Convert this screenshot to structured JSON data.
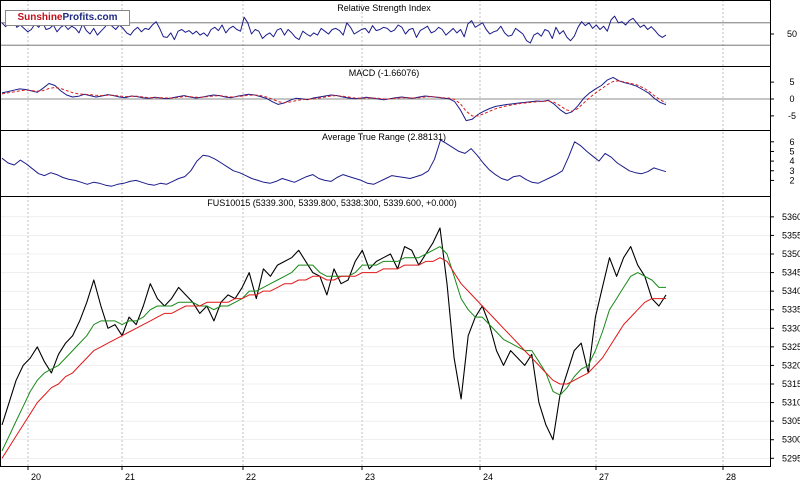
{
  "logo": {
    "part1": "Sunshine",
    "part2": "Profits.com"
  },
  "colors": {
    "rsi": "#1c1c8c",
    "macd": "#1c1c8c",
    "signal": "#d42020",
    "atr": "#1c1c8c",
    "price": "#000000",
    "sma_short": "#1a8a1a",
    "sma_long": "#e01818",
    "grid": "#b0b0b0"
  },
  "x_axis": {
    "ticks": [
      "20",
      "21",
      "22",
      "23",
      "24",
      "27",
      "28"
    ]
  },
  "chart_data": [
    {
      "type": "line",
      "panel": "rsi",
      "title": "Relative Strength Index",
      "yticks": [
        "50"
      ],
      "ylim": [
        0,
        100
      ],
      "levels": [
        70,
        30
      ],
      "series": [
        {
          "values": [
            70,
            63,
            72,
            80,
            62,
            66,
            60,
            54,
            58,
            68,
            62,
            72,
            58,
            60,
            66,
            54,
            62,
            66,
            58,
            64,
            60,
            52,
            68,
            56,
            50,
            60,
            48,
            55,
            62,
            70,
            64,
            58,
            66,
            60,
            52,
            48,
            57,
            62,
            54,
            60,
            58,
            66,
            72,
            60,
            45,
            44,
            52,
            40,
            55,
            58,
            53,
            56,
            50,
            55,
            48,
            52,
            46,
            58,
            62,
            56,
            66,
            52,
            60,
            64,
            58,
            55,
            80,
            70,
            50,
            58,
            55,
            42,
            48,
            52,
            45,
            57,
            60,
            48,
            58,
            52,
            44,
            40,
            55,
            50,
            46,
            52,
            48,
            60,
            55,
            50,
            58,
            60,
            56,
            48,
            70,
            62,
            50,
            54,
            58,
            60,
            52,
            65,
            56,
            58,
            62,
            60,
            54,
            57,
            66,
            62,
            50,
            58,
            60,
            44,
            56,
            60,
            64,
            52,
            55,
            62,
            58,
            48,
            54,
            60,
            52,
            58,
            45,
            68,
            74,
            62,
            66,
            70,
            58,
            50,
            54,
            56,
            64,
            52,
            46,
            48,
            60,
            55,
            50,
            38,
            34,
            48,
            52,
            46,
            58,
            55,
            42,
            62,
            50,
            56,
            44,
            38,
            46,
            62,
            72,
            65,
            70,
            60,
            66,
            58,
            64,
            55,
            75,
            82,
            70,
            72,
            66,
            74,
            78,
            70,
            62,
            66,
            58,
            63,
            56,
            48,
            44,
            48
          ]
        }
      ]
    },
    {
      "type": "line",
      "panel": "macd",
      "title": "MACD (-1.66076)",
      "yticks": [
        "5",
        "0",
        "-5"
      ],
      "ylim": [
        -8,
        8
      ],
      "series": [
        {
          "values": [
            1.8,
            2.2,
            2.6,
            3.0,
            2.8,
            2.4,
            2.0,
            3.2,
            4.6,
            4.0,
            2.4,
            1.2,
            0.6,
            0.8,
            1.4,
            1.0,
            0.6,
            0.9,
            1.3,
            1.0,
            0.6,
            0.4,
            0.9,
            0.7,
            0.4,
            0.2,
            0.5,
            0.3,
            0.1,
            0.4,
            0.7,
            1.0,
            0.6,
            0.3,
            0.5,
            0.9,
            1.2,
            1.0,
            0.6,
            0.4,
            0.8,
            1.1,
            1.4,
            1.2,
            0.7,
            0.2,
            -0.8,
            -1.6,
            -1.2,
            -0.4,
            0.2,
            0.1,
            -0.2,
            0.3,
            0.6,
            0.9,
            1.2,
            1.0,
            0.6,
            0.3,
            0.1,
            0.2,
            0.5,
            0.3,
            0.0,
            -0.2,
            0.1,
            0.4,
            0.6,
            0.4,
            0.2,
            0.6,
            0.9,
            0.7,
            0.5,
            0.3,
            0.1,
            -0.7,
            -3.2,
            -6.4,
            -6.0,
            -4.6,
            -3.6,
            -2.8,
            -2.2,
            -1.9,
            -1.6,
            -1.4,
            -1.2,
            -1.0,
            -0.8,
            -0.6,
            -0.7,
            -0.4,
            -1.6,
            -3.2,
            -4.4,
            -3.8,
            -2.0,
            0.2,
            1.8,
            3.0,
            4.0,
            5.6,
            6.4,
            5.4,
            4.8,
            4.4,
            3.8,
            2.8,
            1.8,
            0.2,
            -1.0,
            -1.7
          ]
        },
        {
          "values": [
            1.5,
            1.8,
            2.1,
            2.4,
            2.6,
            2.5,
            2.3,
            2.5,
            3.1,
            3.4,
            3.1,
            2.5,
            1.9,
            1.5,
            1.4,
            1.3,
            1.1,
            1.0,
            1.1,
            1.1,
            0.9,
            0.7,
            0.8,
            0.8,
            0.6,
            0.4,
            0.4,
            0.4,
            0.3,
            0.3,
            0.5,
            0.7,
            0.7,
            0.5,
            0.5,
            0.7,
            0.9,
            1.0,
            0.8,
            0.6,
            0.7,
            0.9,
            1.1,
            1.2,
            1.0,
            0.6,
            0.0,
            -0.8,
            -1.1,
            -0.9,
            -0.5,
            -0.2,
            -0.1,
            0.0,
            0.3,
            0.6,
            0.9,
            1.0,
            0.8,
            0.6,
            0.3,
            0.2,
            0.3,
            0.3,
            0.2,
            0.0,
            0.0,
            0.2,
            0.4,
            0.4,
            0.3,
            0.4,
            0.6,
            0.7,
            0.6,
            0.4,
            0.3,
            -0.1,
            -1.4,
            -3.6,
            -5.0,
            -5.0,
            -4.4,
            -3.6,
            -2.9,
            -2.4,
            -2.0,
            -1.7,
            -1.4,
            -1.2,
            -1.0,
            -0.8,
            -0.7,
            -0.6,
            -1.0,
            -2.0,
            -3.2,
            -3.6,
            -2.8,
            -1.2,
            0.4,
            1.8,
            3.0,
            4.2,
            5.2,
            5.4,
            5.0,
            4.6,
            4.2,
            3.4,
            2.4,
            1.0,
            -0.2,
            -1.2
          ]
        }
      ]
    },
    {
      "type": "line",
      "panel": "atr",
      "title": "Average True Range (2.88131)",
      "yticks": [
        "6",
        "5",
        "4",
        "3",
        "2"
      ],
      "ylim": [
        0.8,
        6.6
      ],
      "series": [
        {
          "values": [
            4.3,
            3.8,
            3.6,
            4.1,
            3.7,
            3.2,
            2.7,
            2.5,
            2.8,
            2.6,
            2.3,
            2.1,
            2.0,
            1.8,
            1.6,
            1.8,
            1.7,
            1.5,
            1.4,
            1.6,
            1.7,
            1.9,
            2.0,
            1.8,
            1.6,
            1.5,
            1.7,
            1.6,
            1.9,
            2.2,
            2.4,
            3.0,
            4.0,
            4.6,
            4.5,
            4.2,
            3.8,
            3.4,
            3.0,
            2.8,
            2.5,
            2.2,
            2.0,
            1.8,
            1.7,
            1.9,
            2.2,
            2.0,
            1.8,
            2.1,
            2.4,
            2.6,
            2.2,
            2.0,
            1.9,
            2.3,
            2.6,
            2.4,
            2.2,
            2.0,
            1.7,
            1.6,
            1.9,
            2.2,
            2.5,
            2.4,
            2.3,
            2.2,
            2.4,
            2.6,
            3.0,
            4.2,
            6.2,
            5.8,
            5.4,
            5.0,
            4.8,
            5.3,
            4.6,
            3.8,
            3.1,
            2.6,
            2.2,
            2.0,
            2.4,
            2.5,
            2.1,
            1.8,
            1.7,
            2.0,
            2.3,
            2.6,
            3.0,
            4.4,
            6.0,
            5.6,
            5.0,
            4.5,
            4.0,
            4.8,
            4.4,
            3.8,
            3.4,
            3.0,
            2.8,
            2.7,
            2.9,
            3.3,
            3.1,
            2.9
          ]
        }
      ]
    },
    {
      "type": "line",
      "panel": "price",
      "title": "FUS10015 (5339.300, 5339.800, 5338.300, 5339.600, +0.000)",
      "yticks": [
        "5360",
        "5355",
        "5350",
        "5345",
        "5340",
        "5335",
        "5330",
        "5325",
        "5320",
        "5315",
        "5310",
        "5305",
        "5300",
        "5295"
      ],
      "ylim": [
        5294,
        5364
      ],
      "series": [
        {
          "values": [
            5304,
            5310,
            5316,
            5320,
            5322,
            5325,
            5321,
            5318,
            5323,
            5326,
            5328,
            5332,
            5337,
            5343,
            5336,
            5330,
            5331,
            5328,
            5333,
            5331,
            5336,
            5342,
            5338,
            5336,
            5338,
            5341,
            5339,
            5337,
            5334,
            5336,
            5332,
            5337,
            5339,
            5338,
            5341,
            5345,
            5338,
            5346,
            5344,
            5347,
            5348,
            5349,
            5351,
            5348,
            5345,
            5344,
            5339,
            5346,
            5342,
            5343,
            5348,
            5351,
            5346,
            5348,
            5349,
            5350,
            5346,
            5352,
            5351,
            5347,
            5350,
            5353,
            5357,
            5342,
            5322,
            5311,
            5328,
            5333,
            5336,
            5331,
            5324,
            5320,
            5324,
            5322,
            5320,
            5323,
            5310,
            5304,
            5300,
            5312,
            5318,
            5324,
            5326,
            5318,
            5333,
            5341,
            5349,
            5344,
            5349,
            5352,
            5347,
            5344,
            5338,
            5336,
            5339
          ]
        },
        {
          "values": [
            5297,
            5301,
            5305,
            5309,
            5313,
            5316,
            5318,
            5319,
            5320,
            5322,
            5324,
            5326,
            5328,
            5331,
            5332,
            5332,
            5332,
            5331,
            5332,
            5332,
            5333,
            5335,
            5336,
            5336,
            5336,
            5337,
            5337,
            5337,
            5336,
            5336,
            5335,
            5336,
            5336,
            5337,
            5338,
            5340,
            5340,
            5341,
            5342,
            5343,
            5344,
            5345,
            5347,
            5347,
            5347,
            5345,
            5344,
            5344,
            5344,
            5344,
            5345,
            5347,
            5347,
            5347,
            5348,
            5348,
            5348,
            5349,
            5349,
            5349,
            5350,
            5351,
            5352,
            5350,
            5344,
            5338,
            5335,
            5333,
            5333,
            5331,
            5329,
            5327,
            5326,
            5325,
            5324,
            5324,
            5321,
            5318,
            5313,
            5312,
            5314,
            5317,
            5319,
            5320,
            5324,
            5329,
            5335,
            5338,
            5341,
            5344,
            5345,
            5344,
            5343,
            5341,
            5341
          ]
        },
        {
          "values": [
            5295,
            5298,
            5301,
            5304,
            5307,
            5310,
            5312,
            5314,
            5315,
            5317,
            5318,
            5320,
            5322,
            5324,
            5325,
            5326,
            5327,
            5328,
            5329,
            5330,
            5331,
            5332,
            5333,
            5334,
            5334,
            5335,
            5336,
            5336,
            5336,
            5337,
            5337,
            5337,
            5337,
            5338,
            5338,
            5339,
            5339,
            5340,
            5340,
            5341,
            5342,
            5342,
            5343,
            5343,
            5344,
            5344,
            5343,
            5343,
            5344,
            5344,
            5344,
            5345,
            5345,
            5345,
            5346,
            5346,
            5346,
            5347,
            5347,
            5347,
            5348,
            5348,
            5349,
            5348,
            5345,
            5342,
            5340,
            5338,
            5336,
            5334,
            5332,
            5330,
            5328,
            5326,
            5324,
            5322,
            5320,
            5318,
            5316,
            5315,
            5315,
            5316,
            5317,
            5318,
            5320,
            5322,
            5325,
            5328,
            5331,
            5333,
            5335,
            5337,
            5338,
            5338,
            5338
          ]
        }
      ]
    }
  ]
}
